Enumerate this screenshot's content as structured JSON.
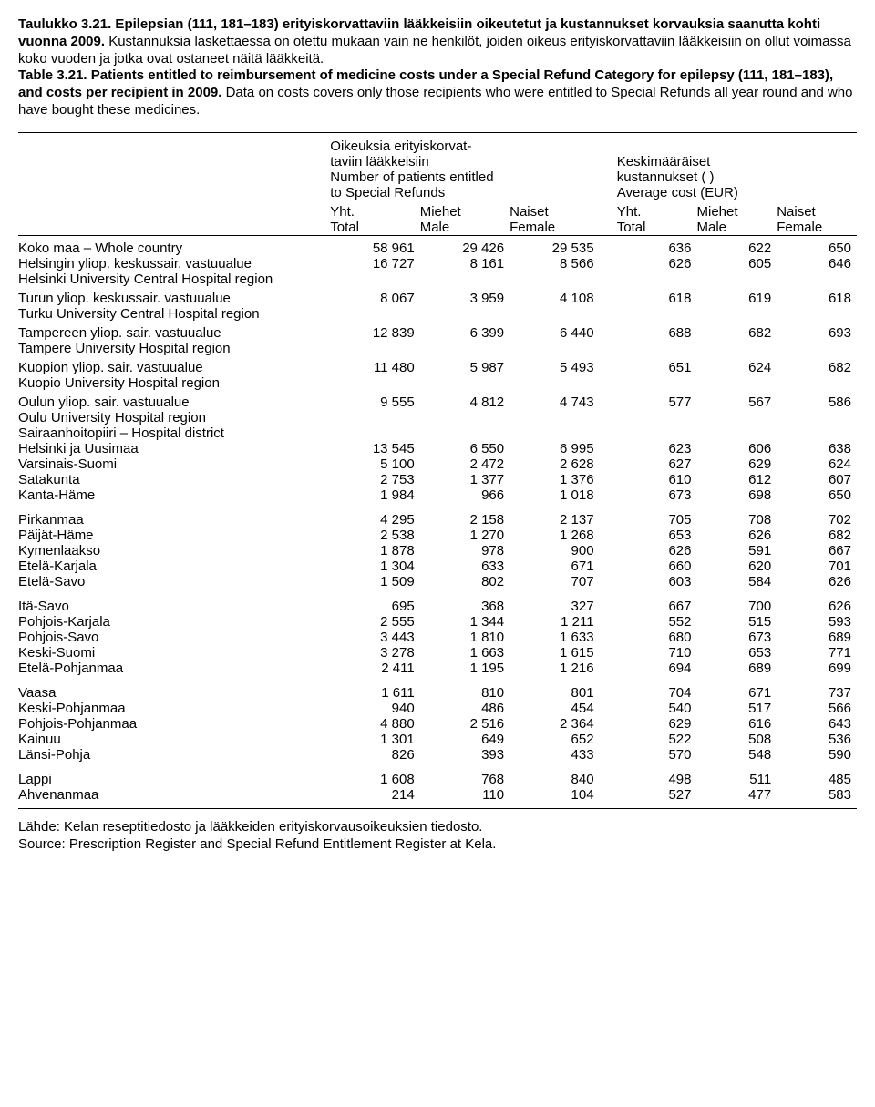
{
  "caption": {
    "fi_title_prefix": "Taulukko 3.21.",
    "fi_title_body": " Epilepsian (111, 181–183) erityiskorvattaviin lääkkeisiin oikeutetut ja kustannukset korvauksia saanutta kohti vuonna 2009.",
    "fi_note": " Kustannuksia laskettaessa on otettu mukaan vain ne henkilöt, joiden oikeus erityiskorvattaviin lääkkeisiin on ollut voimassa koko vuoden ja jotka ovat ostaneet näitä lääkkeitä.",
    "en_title_prefix": "Table 3.21.",
    "en_title_body": " Patients entitled to reimbursement of medicine costs under a Special Refund Category for epilepsy (111, 181–183), and costs per recipient in 2009.",
    "en_note": " Data on costs covers only those recipients who were entitled to Special Refunds all year round and who have bought these medicines."
  },
  "header": {
    "left_group_l1": "Oikeuksia erityiskorvat-",
    "left_group_l2": "taviin lääkkeisiin",
    "left_group_l3": "Number of patients entitled",
    "left_group_l4": "to Special Refunds",
    "right_group_l1": "Keskimääräiset",
    "right_group_l2": "kustannukset ( )",
    "right_group_l3": "Average cost (EUR)",
    "yht": "Yht.",
    "total": "Total",
    "miehet": "Miehet",
    "male": "Male",
    "naiset": "Naiset",
    "female": "Female"
  },
  "sections": {
    "whole_country_fi": "Koko maa",
    "whole_country_en": " – Whole country",
    "hospital_district_fi": "Sairaanhoitopiiri",
    "hospital_district_en": " – Hospital district"
  },
  "regions": [
    {
      "fi": "Helsingin yliop. keskussair. vastuualue",
      "en": "Helsinki University Central Hospital region",
      "v": [
        16727,
        8161,
        8566,
        626,
        605,
        646
      ]
    },
    {
      "fi": "Turun yliop. keskussair. vastuualue",
      "en": "Turku University Central Hospital region",
      "v": [
        8067,
        3959,
        4108,
        618,
        619,
        618
      ]
    },
    {
      "fi": "Tampereen yliop. sair. vastuualue",
      "en": "Tampere University Hospital region",
      "v": [
        12839,
        6399,
        6440,
        688,
        682,
        693
      ]
    },
    {
      "fi": "Kuopion yliop. sair. vastuualue",
      "en": "Kuopio University Hospital region",
      "v": [
        11480,
        5987,
        5493,
        651,
        624,
        682
      ]
    },
    {
      "fi": "Oulun yliop. sair. vastuualue",
      "en": "Oulu University Hospital region",
      "v": [
        9555,
        4812,
        4743,
        577,
        567,
        586
      ]
    }
  ],
  "whole_country_v": [
    58961,
    29426,
    29535,
    636,
    622,
    650
  ],
  "districts": [
    [
      {
        "n": "Helsinki ja Uusimaa",
        "v": [
          13545,
          6550,
          6995,
          623,
          606,
          638
        ]
      },
      {
        "n": "Varsinais-Suomi",
        "v": [
          5100,
          2472,
          2628,
          627,
          629,
          624
        ]
      },
      {
        "n": "Satakunta",
        "v": [
          2753,
          1377,
          1376,
          610,
          612,
          607
        ]
      },
      {
        "n": "Kanta-Häme",
        "v": [
          1984,
          966,
          1018,
          673,
          698,
          650
        ]
      }
    ],
    [
      {
        "n": "Pirkanmaa",
        "v": [
          4295,
          2158,
          2137,
          705,
          708,
          702
        ]
      },
      {
        "n": "Päijät-Häme",
        "v": [
          2538,
          1270,
          1268,
          653,
          626,
          682
        ]
      },
      {
        "n": "Kymenlaakso",
        "v": [
          1878,
          978,
          900,
          626,
          591,
          667
        ]
      },
      {
        "n": "Etelä-Karjala",
        "v": [
          1304,
          633,
          671,
          660,
          620,
          701
        ]
      },
      {
        "n": "Etelä-Savo",
        "v": [
          1509,
          802,
          707,
          603,
          584,
          626
        ]
      }
    ],
    [
      {
        "n": "Itä-Savo",
        "v": [
          695,
          368,
          327,
          667,
          700,
          626
        ]
      },
      {
        "n": "Pohjois-Karjala",
        "v": [
          2555,
          1344,
          1211,
          552,
          515,
          593
        ]
      },
      {
        "n": "Pohjois-Savo",
        "v": [
          3443,
          1810,
          1633,
          680,
          673,
          689
        ]
      },
      {
        "n": "Keski-Suomi",
        "v": [
          3278,
          1663,
          1615,
          710,
          653,
          771
        ]
      },
      {
        "n": "Etelä-Pohjanmaa",
        "v": [
          2411,
          1195,
          1216,
          694,
          689,
          699
        ]
      }
    ],
    [
      {
        "n": "Vaasa",
        "v": [
          1611,
          810,
          801,
          704,
          671,
          737
        ]
      },
      {
        "n": "Keski-Pohjanmaa",
        "v": [
          940,
          486,
          454,
          540,
          517,
          566
        ]
      },
      {
        "n": "Pohjois-Pohjanmaa",
        "v": [
          4880,
          2516,
          2364,
          629,
          616,
          643
        ]
      },
      {
        "n": "Kainuu",
        "v": [
          1301,
          649,
          652,
          522,
          508,
          536
        ]
      },
      {
        "n": "Länsi-Pohja",
        "v": [
          826,
          393,
          433,
          570,
          548,
          590
        ]
      }
    ],
    [
      {
        "n": "Lappi",
        "v": [
          1608,
          768,
          840,
          498,
          511,
          485
        ]
      },
      {
        "n": "Ahvenanmaa",
        "v": [
          214,
          110,
          104,
          527,
          477,
          583
        ]
      }
    ]
  ],
  "footer": {
    "fi": "Lähde: Kelan reseptitiedosto ja lääkkeiden erityiskorvausoikeuksien tiedosto.",
    "en": "Source: Prescription Register and Special Refund Entitlement Register at Kela."
  }
}
